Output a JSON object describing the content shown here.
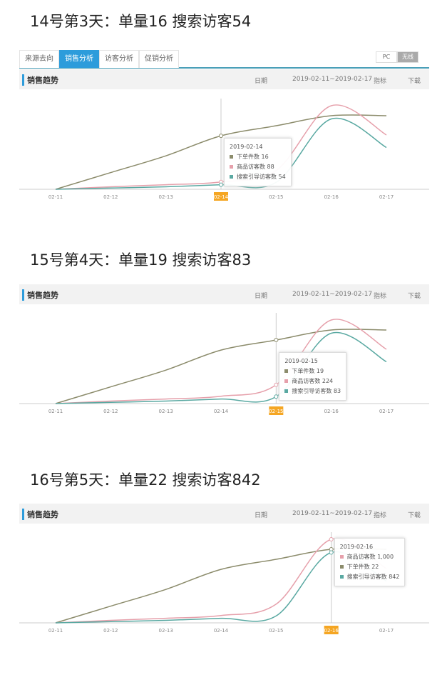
{
  "tabs": [
    "来源去向",
    "销售分析",
    "访客分析",
    "促销分析"
  ],
  "device_toggle": [
    "PC",
    "无线"
  ],
  "toolbar": {
    "title": "销售趋势",
    "date_label": "日期",
    "range": "2019-02-11~2019-02-17",
    "metric_label": "指标",
    "download_label": "下载"
  },
  "colors": {
    "orders": "#8c8c6c",
    "product_visitors": "#e6a0ab",
    "search_visitors": "#5aa9a2",
    "highlight": "#f5a623"
  },
  "panels": [
    {
      "heading": "14号第3天：单量16 搜索访客54",
      "highlight": "02-14",
      "tooltip": {
        "date": "2019-02-14",
        "rows": [
          [
            "下单件数",
            "16",
            "orders"
          ],
          [
            "商品访客数",
            "88",
            "product_visitors"
          ],
          [
            "搜索引导访客数",
            "54",
            "search_visitors"
          ]
        ]
      }
    },
    {
      "heading": "15号第4天：单量19 搜索访客83",
      "highlight": "02-15",
      "tooltip": {
        "date": "2019-02-15",
        "rows": [
          [
            "下单件数",
            "19",
            "orders"
          ],
          [
            "商品访客数",
            "224",
            "product_visitors"
          ],
          [
            "搜索引导访客数",
            "83",
            "search_visitors"
          ]
        ]
      }
    },
    {
      "heading": "16号第5天：单量22 搜索访客842",
      "highlight": "02-16",
      "tooltip": {
        "date": "2019-02-16",
        "rows": [
          [
            "商品访客数",
            "1,000",
            "product_visitors"
          ],
          [
            "下单件数",
            "22",
            "orders"
          ],
          [
            "搜索引导访客数",
            "842",
            "search_visitors"
          ]
        ]
      }
    }
  ],
  "chart_data": {
    "type": "line",
    "categories": [
      "02-11",
      "02-12",
      "02-13",
      "02-14",
      "02-15",
      "02-16",
      "02-17"
    ],
    "series": [
      {
        "name": "下单件数",
        "key": "orders",
        "values": [
          0,
          5,
          10,
          16,
          19,
          22,
          22
        ]
      },
      {
        "name": "商品访客数",
        "key": "product_visitors",
        "values": [
          0,
          30,
          55,
          88,
          224,
          1000,
          650
        ]
      },
      {
        "name": "搜索引导访客数",
        "key": "search_visitors",
        "values": [
          0,
          15,
          30,
          54,
          83,
          842,
          500
        ]
      }
    ]
  }
}
